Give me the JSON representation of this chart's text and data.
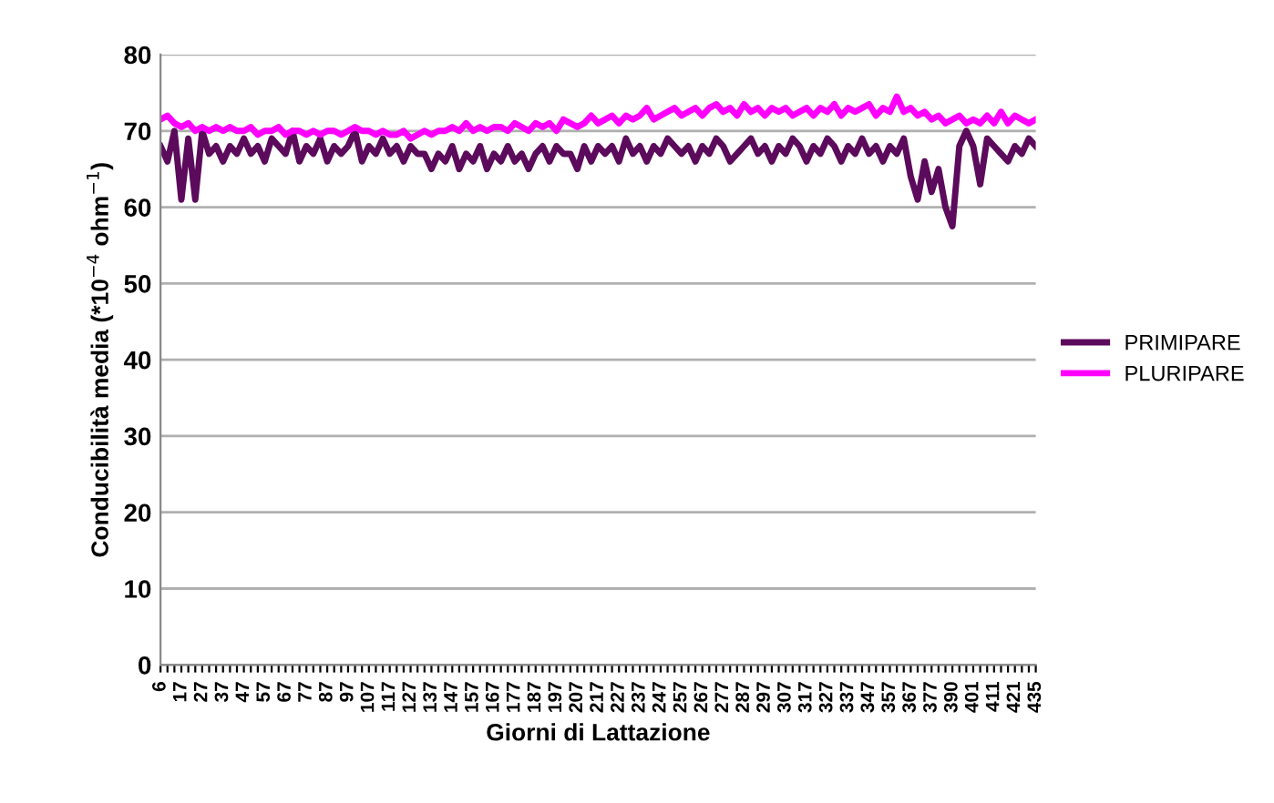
{
  "chart_data": {
    "type": "line",
    "xlabel": "Giorni di Lattazione",
    "ylabel": "Conducibilità media (*10$^{−4}$ ohm$^{−1}$)",
    "categories": [
      "6",
      null,
      null,
      "17",
      null,
      null,
      "27",
      null,
      null,
      "37",
      null,
      null,
      "47",
      null,
      null,
      "57",
      null,
      null,
      "67",
      null,
      null,
      "77",
      null,
      null,
      "87",
      null,
      null,
      "97",
      null,
      null,
      "107",
      null,
      null,
      "117",
      null,
      null,
      "127",
      null,
      null,
      "137",
      null,
      null,
      "147",
      null,
      null,
      "157",
      null,
      null,
      "167",
      null,
      null,
      "177",
      null,
      null,
      "187",
      null,
      null,
      "197",
      null,
      null,
      "207",
      null,
      null,
      "217",
      null,
      null,
      "227",
      null,
      null,
      "237",
      null,
      null,
      "247",
      null,
      null,
      "257",
      null,
      null,
      "267",
      null,
      null,
      "277",
      null,
      null,
      "287",
      null,
      null,
      "297",
      null,
      null,
      "307",
      null,
      null,
      "317",
      null,
      null,
      "327",
      null,
      null,
      "337",
      null,
      null,
      "347",
      null,
      null,
      "357",
      null,
      null,
      "367",
      null,
      null,
      "377",
      null,
      null,
      "390",
      null,
      null,
      "401",
      null,
      null,
      "411",
      null,
      null,
      "421",
      null,
      null,
      "435"
    ],
    "series": [
      {
        "name": "PRIMIPARE",
        "color": "#5c0a5c",
        "values": [
          68,
          66,
          70,
          61,
          69,
          61,
          70,
          67,
          68,
          66,
          68,
          67,
          69,
          67,
          68,
          66,
          69,
          68,
          67,
          70,
          66,
          68,
          67,
          69,
          66,
          68,
          67,
          68,
          70,
          66,
          68,
          67,
          69,
          67,
          68,
          66,
          68,
          67,
          67,
          65,
          67,
          66,
          68,
          65,
          67,
          66,
          68,
          65,
          67,
          66,
          68,
          66,
          67,
          65,
          67,
          68,
          66,
          68,
          67,
          67,
          65,
          68,
          66,
          68,
          67,
          68,
          66,
          69,
          67,
          68,
          66,
          68,
          67,
          69,
          68,
          67,
          68,
          66,
          68,
          67,
          69,
          68,
          66,
          67,
          68,
          69,
          67,
          68,
          66,
          68,
          67,
          69,
          68,
          66,
          68,
          67,
          69,
          68,
          66,
          68,
          67,
          69,
          67,
          68,
          66,
          68,
          67,
          69,
          64,
          61,
          66,
          62,
          65,
          60,
          57.5,
          68,
          70,
          68,
          63,
          69,
          68,
          67,
          66,
          68,
          67,
          69,
          68
        ]
      },
      {
        "name": "PLURIPARE",
        "color": "#ff00ff",
        "values": [
          71.5,
          72,
          71,
          70.5,
          71,
          70,
          70.5,
          70,
          70.5,
          70,
          70.5,
          70,
          70,
          70.5,
          69.5,
          70,
          70,
          70.5,
          69.5,
          70,
          70,
          69.5,
          70,
          69.5,
          70,
          70,
          69.5,
          70,
          70.5,
          70,
          70,
          69.5,
          70,
          69.5,
          69.5,
          70,
          69,
          69.5,
          70,
          69.5,
          70,
          70,
          70.5,
          70,
          71,
          70,
          70.5,
          70,
          70.5,
          70.5,
          70,
          71,
          70.5,
          70,
          71,
          70.5,
          71,
          70,
          71.5,
          71,
          70.5,
          71,
          72,
          71,
          71.5,
          72,
          71,
          72,
          71.5,
          72,
          73,
          71.5,
          72,
          72.5,
          73,
          72,
          72.5,
          73,
          72,
          73,
          73.5,
          72.5,
          73,
          72,
          73.5,
          72.5,
          73,
          72,
          73,
          72.5,
          73,
          72,
          72.5,
          73,
          72,
          73,
          72.5,
          73.5,
          72,
          73,
          72.5,
          73,
          73.5,
          72,
          73,
          72.5,
          74.5,
          72.5,
          73,
          72,
          72.5,
          71.5,
          72,
          71,
          71.5,
          72,
          71,
          71.5,
          71,
          72,
          71,
          72.5,
          71,
          72,
          71.5,
          71,
          71.5
        ]
      }
    ],
    "ylim": [
      0,
      80
    ],
    "yticks": [
      0,
      10,
      20,
      30,
      40,
      50,
      60,
      70,
      80
    ],
    "grid": "y",
    "legend": "right",
    "marker": "none",
    "line_style": "solid"
  }
}
